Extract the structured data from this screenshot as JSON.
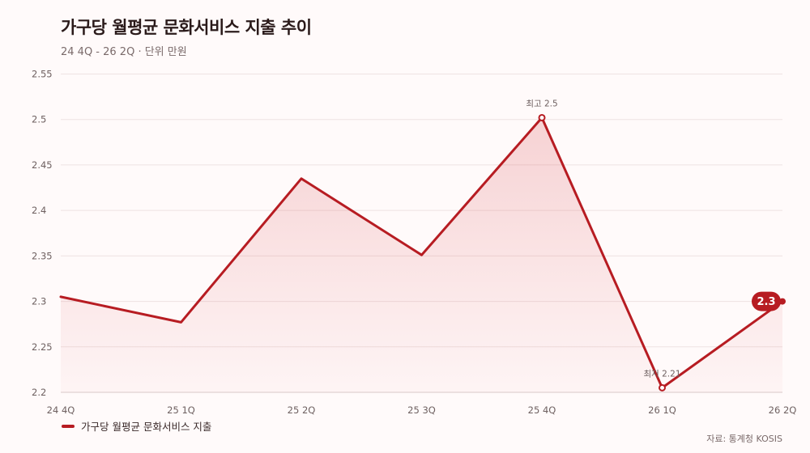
{
  "chart_data": {
    "type": "line",
    "title": "가구당 월평균 문화서비스 지출 추이",
    "subtitle": "24 4Q - 26 2Q · 단위 만원",
    "categories": [
      "24 4Q",
      "25 1Q",
      "25 2Q",
      "25 3Q",
      "25 4Q",
      "26 1Q",
      "26 2Q"
    ],
    "series": [
      {
        "name": "가구당 월평균 문화서비스 지출",
        "values": [
          2.305,
          2.277,
          2.435,
          2.351,
          2.502,
          2.205,
          2.3
        ],
        "color": "#b71c22"
      }
    ],
    "ylim": [
      2.2,
      2.55
    ],
    "yticks": [
      2.2,
      2.25,
      2.3,
      2.35,
      2.4,
      2.45,
      2.5,
      2.55
    ],
    "grid": true,
    "legend_position": "bottom-left",
    "annotations": [
      {
        "index": 4,
        "text": "최고 2.5"
      },
      {
        "index": 5,
        "text": "최저 2.21"
      }
    ],
    "last_value_badge": {
      "index": 6,
      "text": "2.3"
    },
    "source": "자료: 통계청 KOSIS"
  }
}
